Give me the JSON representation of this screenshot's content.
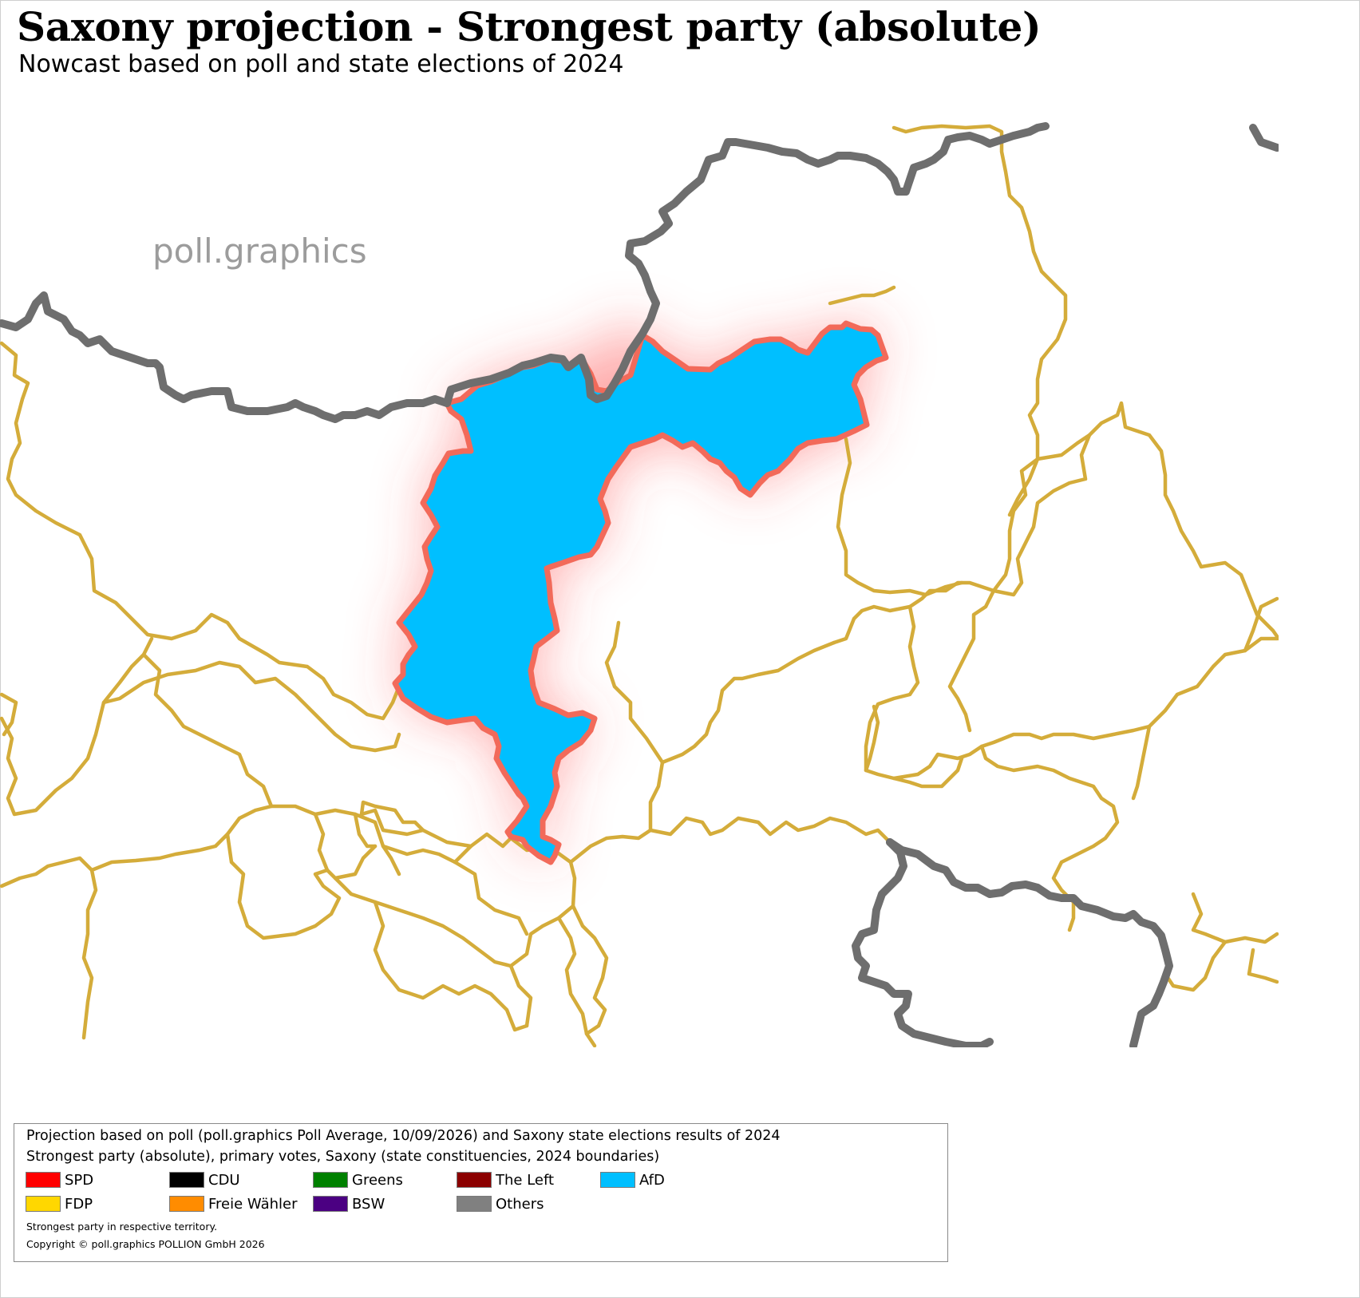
{
  "title": "Saxony projection - Strongest party (absolute)",
  "subtitle": "Nowcast based on poll and state elections of 2024",
  "watermark": "poll.graphics",
  "colors": {
    "afd_fill": "#00BFFF",
    "constituency_border": "#D4AC3A",
    "state_border": "#6E6E6E",
    "highlight_border": "#F26A5A",
    "glow": "#FF4A4A"
  },
  "legend": {
    "line1": "Projection based on poll (poll.graphics Poll Average, 10/09/2026) and Saxony state elections results of 2024",
    "line2": "Strongest party (absolute), primary votes, Saxony (state constituencies, 2024 boundaries)",
    "items": [
      {
        "label": "SPD",
        "color": "#FF0000"
      },
      {
        "label": "CDU",
        "color": "#000000"
      },
      {
        "label": "Greens",
        "color": "#008000"
      },
      {
        "label": "The Left",
        "color": "#8B0000"
      },
      {
        "label": "AfD",
        "color": "#00BFFF"
      },
      {
        "label": "FDP",
        "color": "#FFD700"
      },
      {
        "label": "Freie Wähler",
        "color": "#FF8C00"
      },
      {
        "label": "BSW",
        "color": "#4B0082"
      },
      {
        "label": "Others",
        "color": "#808080"
      }
    ],
    "note": "Strongest party in respective territory.",
    "copyright": "Copyright © poll.graphics POLLION GmbH 2026"
  },
  "map": {
    "region": "Saxony",
    "highlighted_constituency_party": "AfD"
  }
}
